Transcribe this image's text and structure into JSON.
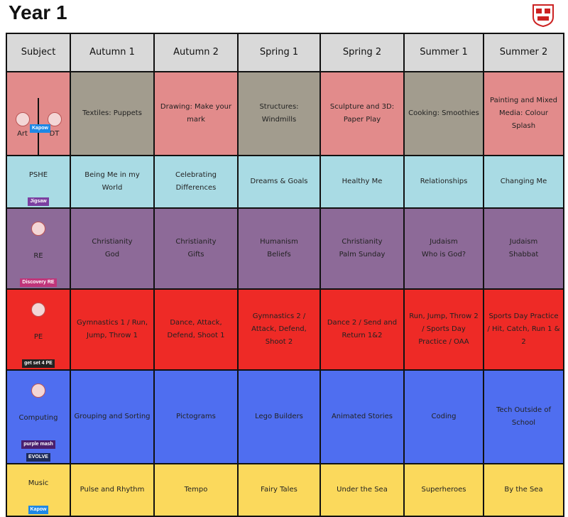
{
  "title": "Year 1",
  "headers": [
    "Subject",
    "Autumn 1",
    "Autumn 2",
    "Spring 1",
    "Spring 2",
    "Summer 1",
    "Summer 2"
  ],
  "rows": [
    {
      "art": "Art",
      "dt": "DT",
      "badge": "Kapow",
      "cells": [
        "Textiles: Puppets",
        "Drawing: Make your mark",
        "Structures: Windmills",
        "Sculpture and 3D: Paper Play",
        "Cooking: Smoothies",
        "Painting and Mixed Media: Colour Splash"
      ]
    },
    {
      "subject": "PSHE",
      "badge": "Jigsaw",
      "cells": [
        "Being Me in my World",
        "Celebrating Differences",
        "Dreams & Goals",
        "Healthy Me",
        "Relationships",
        "Changing Me"
      ]
    },
    {
      "subject": "RE",
      "badge": "Discovery RE",
      "cells": [
        "Christianity\nGod",
        "Christianity\nGifts",
        "Humanism\nBeliefs",
        "Christianity\nPalm Sunday",
        "Judaism\nWho is God?",
        "Judaism\nShabbat"
      ]
    },
    {
      "subject": "PE",
      "badge": "get set 4 PE",
      "cells": [
        "Gymnastics 1 / Run, Jump, Throw 1",
        "Dance, Attack, Defend, Shoot 1",
        "Gymnastics 2 / Attack, Defend, Shoot 2",
        "Dance 2 / Send and Return 1&2",
        "Run, Jump, Throw 2 / Sports Day Practice / OAA",
        "Sports Day Practice / Hit, Catch, Run 1 & 2"
      ]
    },
    {
      "subject": "Computing",
      "badge": "purple mash",
      "badge2": "EVOLVE",
      "cells": [
        "Grouping and Sorting",
        "Pictograms",
        "Lego Builders",
        "Animated Stories",
        "Coding",
        "Tech Outside of School"
      ]
    },
    {
      "subject": "Music",
      "badge": "Kapow",
      "cells": [
        "Pulse and Rhythm",
        "Tempo",
        "Fairy Tales",
        "Under the Sea",
        "Superheroes",
        "By the Sea"
      ]
    }
  ]
}
